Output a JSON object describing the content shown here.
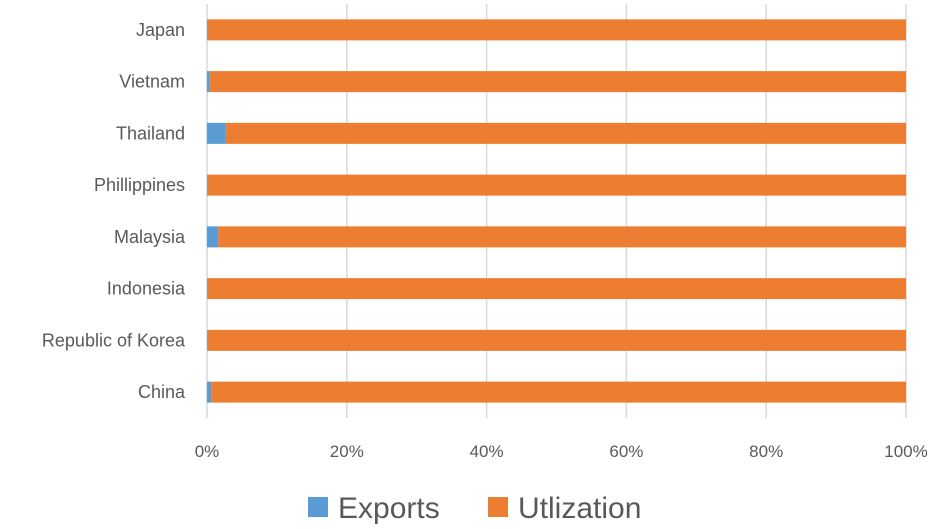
{
  "chart_data": {
    "type": "bar",
    "orientation": "horizontal",
    "stacked": "percent",
    "categories": [
      "China",
      "Republic of Korea",
      "Indonesia",
      "Malaysia",
      "Phillippines",
      "Thailand",
      "Vietnam",
      "Japan"
    ],
    "series": [
      {
        "name": "Exports",
        "color": "#5b9bd5",
        "values": [
          0.6,
          0.1,
          0.1,
          1.6,
          0.1,
          2.7,
          0.4,
          0.1
        ]
      },
      {
        "name": "Utlization",
        "color": "#ed7d31",
        "values": [
          99.4,
          99.9,
          99.9,
          98.4,
          99.9,
          97.3,
          99.6,
          99.9
        ]
      }
    ],
    "x_ticks": [
      "0%",
      "20%",
      "40%",
      "60%",
      "80%",
      "100%"
    ],
    "xlim": [
      0,
      100
    ],
    "grid": true,
    "legend_position": "bottom"
  }
}
